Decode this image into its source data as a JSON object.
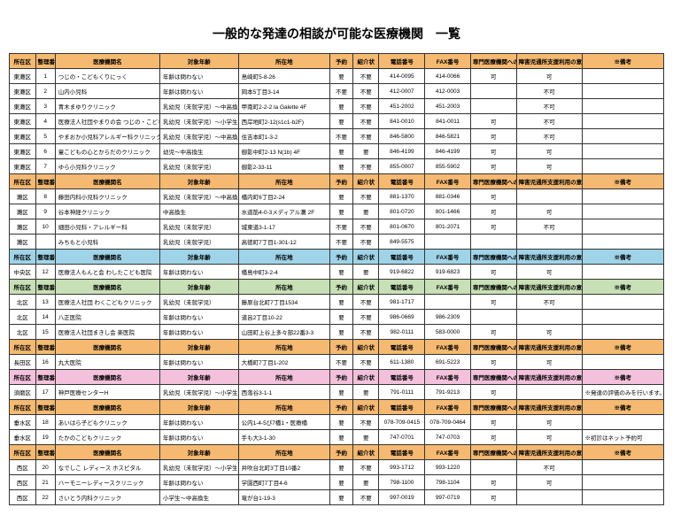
{
  "title": "一般的な発達の相談が可能な医療機関　一覧",
  "columns": [
    "所在区",
    "整理番号",
    "医療機関名",
    "対象年齢",
    "所在地",
    "予約",
    "紹介状",
    "電話番号",
    "FAX番号",
    "専門医療機関への紹介",
    "障害児通所支援利用の意見書作成",
    "※備考"
  ],
  "colors": {
    "orange": "#f5b971",
    "blue": "#9fd4e8",
    "green": "#c7e0b5",
    "pink": "#f3c1dc",
    "plain": "#ffffff"
  },
  "sections": [
    {
      "color": "orange",
      "rows": [
        [
          "東灘区",
          "1",
          "つじの・こどもくりにっく",
          "年齢は問わない",
          "島崎町5-8-26",
          "要",
          "不要",
          "414-0095",
          "414-0066",
          "可",
          "可",
          ""
        ],
        [
          "東灘区",
          "2",
          "山内小児科",
          "年齢は問わない",
          "岡本5丁目3-14",
          "不要",
          "不要",
          "412-0007",
          "412-0003",
          "",
          "不可",
          ""
        ],
        [
          "東灘区",
          "3",
          "青木まゆりクリニック",
          "乳幼児（未就学児）～中高換生",
          "甲南町2-2-2 la Galette 4F",
          "要",
          "不要",
          "451-2002",
          "451-2003",
          "",
          "不可",
          ""
        ],
        [
          "東灘区",
          "4",
          "医療法人社団やまりの会 つじの・こどもくりにっく神戸ベイ",
          "乳幼児（未就学児）～小学生",
          "西岸地町2-12(s1c1-b2F)",
          "要",
          "不要",
          "841-0010",
          "841-0011",
          "可",
          "不可",
          ""
        ],
        [
          "東灘区",
          "5",
          "やまおか小児科アレルギー科クリニック",
          "乳幼児（未就学児）～中高換生",
          "住吉本町1-3-2",
          "不要",
          "不要",
          "846-5800",
          "846-5821",
          "可",
          "不可",
          ""
        ],
        [
          "東灘区",
          "6",
          "童こどもの心とからだのクリニック",
          "幼児～中高換生",
          "御影中町2-13 N(1b) 4F",
          "要",
          "要",
          "846-4199",
          "846-4199",
          "可",
          "可",
          ""
        ],
        [
          "東灘区",
          "7",
          "ゆら小児科クリニック",
          "乳幼児（未就学児）",
          "御影2-33-11",
          "要",
          "不要",
          "855-0007",
          "855-5902",
          "可",
          "可",
          ""
        ]
      ]
    },
    {
      "color": "orange",
      "rows": [
        [
          "灘区",
          "8",
          "藤田内科小児科クリニック",
          "乳幼児（未就学児）～中高換生",
          "橋内町6丁目2-24",
          "要",
          "不要",
          "881-1370",
          "881-0346",
          "可",
          "",
          ""
        ],
        [
          "灘区",
          "9",
          "谷本神経クリニック",
          "中高換生",
          "水道筋4-0-3メディアル灘 2F",
          "要",
          "要",
          "801-0720",
          "801-1466",
          "可",
          "可",
          ""
        ],
        [
          "灘区",
          "10",
          "細田小児科・アレルギー科",
          "乳幼児（未就学児）",
          "城東道3-1-17",
          "不要",
          "不要",
          "801-0670",
          "801-2071",
          "可",
          "不可",
          ""
        ],
        [
          "灘区",
          "",
          "みちもと小児科",
          "乳幼児（未就学児）",
          "高徳町7丁目1-301-12",
          "不要",
          "不要",
          "849-5575",
          "",
          "",
          "",
          ""
        ]
      ]
    },
    {
      "color": "blue",
      "rows": [
        [
          "中央区",
          "12",
          "医療法人もんと会 わしたこども医院",
          "年齢は問わない",
          "橋島中町3-2-4",
          "要",
          "要",
          "919-6822",
          "919-6823",
          "可",
          "可",
          ""
        ]
      ]
    },
    {
      "color": "green",
      "rows": [
        [
          "北区",
          "13",
          "医療法人社団 わくこどもクリニック",
          "乳幼児（未就学児）",
          "藤原台北町7丁目1534",
          "要",
          "不要",
          "981-1717",
          "",
          "可",
          "不可",
          ""
        ],
        [
          "北区",
          "14",
          "八正医院",
          "年齢は問わない",
          "道呂2丁目10-22",
          "要",
          "不要",
          "986-0669",
          "986-2309",
          "",
          "",
          ""
        ],
        [
          "北区",
          "15",
          "医療法人社団まきし会 楽医院",
          "年齢は問わない",
          "山田町上谷上多々部22番3-3",
          "要",
          "不要",
          "982-0111",
          "583-0000",
          "可",
          "可",
          ""
        ]
      ]
    },
    {
      "color": "orange",
      "rows": [
        [
          "長田区",
          "16",
          "丸大医院",
          "年齢は問わない",
          "大橋町7丁目1-202",
          "不要",
          "不要",
          "611-1380",
          "691-5223",
          "可",
          "可",
          ""
        ]
      ]
    },
    {
      "color": "pink",
      "rows": [
        [
          "須磨区",
          "17",
          "神戸医療センターH",
          "乳幼児（未就学児）～小学生",
          "西落谷3-1-1",
          "要",
          "要",
          "791-0111",
          "791-9213",
          "可",
          "",
          "※発達の評価のみを行います。\n継続診療の受入はかかりかねます"
        ]
      ]
    },
    {
      "color": "orange",
      "rows": [
        [
          "垂水区",
          "18",
          "あいはら子どもクリニック",
          "年齢は問わない",
          "公内1-4-5ぴ7橋1・医療橋",
          "要",
          "不要",
          "078-709-0415",
          "078-709-0464",
          "可",
          "可",
          ""
        ],
        [
          "垂水区",
          "19",
          "たかのこどもクリニック",
          "年齢は問わない",
          "手も大3-1-30",
          "要",
          "要",
          "747-0701",
          "747-0703",
          "可",
          "可",
          "※初診はネット予約可"
        ]
      ]
    },
    {
      "color": "orange",
      "rows": [
        [
          "西区",
          "20",
          "なでしこ レディース ホスピタル",
          "乳幼児（未就学児）～小学生",
          "井吹台北町3丁目10番2",
          "要",
          "不要",
          "993-1712",
          "993-1220",
          "",
          "不可",
          ""
        ],
        [
          "西区",
          "21",
          "ハーモニーレディースクリニック",
          "年齢は問わない",
          "学園西町7丁目4-6",
          "要",
          "要",
          "798-1100",
          "798-1104",
          "可",
          "可",
          ""
        ],
        [
          "西区",
          "22",
          "さいとう内科クリニック",
          "小学生～中高換生",
          "竜が台1-19-3",
          "要",
          "不要",
          "997-0019",
          "997-0719",
          "可",
          "",
          ""
        ]
      ]
    }
  ]
}
